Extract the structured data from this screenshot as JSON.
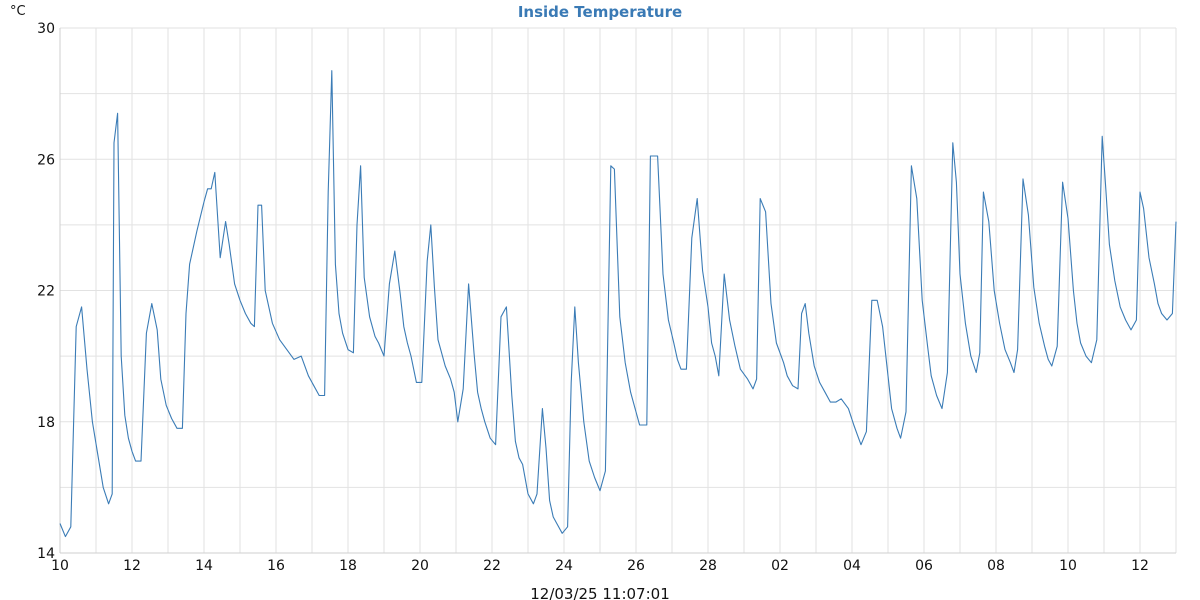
{
  "chart_data": {
    "type": "line",
    "title": "Inside Temperature",
    "y_unit": "°C",
    "ylim": [
      14,
      30
    ],
    "y_ticks": [
      14,
      18,
      22,
      26,
      30
    ],
    "xlim": [
      0,
      31
    ],
    "x_tick_positions": [
      0,
      2,
      4,
      6,
      8,
      10,
      12,
      14,
      16,
      18,
      20,
      22,
      24,
      26,
      28,
      30
    ],
    "x_tick_labels": [
      "10",
      "12",
      "14",
      "16",
      "18",
      "20",
      "22",
      "24",
      "26",
      "28",
      "02",
      "04",
      "06",
      "08",
      "10",
      "12"
    ],
    "grid": true,
    "color": "#3b7cb6",
    "footer": "12/03/25 11:07:01",
    "series": [
      {
        "x": [
          0,
          0.15,
          0.3,
          0.45,
          0.6,
          0.75,
          0.9,
          1.05,
          1.2,
          1.35,
          1.45,
          1.5,
          1.6,
          1.7,
          1.8,
          1.9,
          2.0,
          2.1,
          2.25,
          2.4,
          2.55,
          2.7,
          2.8,
          2.95,
          3.1,
          3.25,
          3.4,
          3.5,
          3.6,
          3.8,
          4.0,
          4.1,
          4.2,
          4.3,
          4.45,
          4.6,
          4.7,
          4.85,
          5.0,
          5.15,
          5.3,
          5.4,
          5.5,
          5.6,
          5.7,
          5.9,
          6.1,
          6.3,
          6.5,
          6.7,
          6.9,
          7.05,
          7.2,
          7.35,
          7.45,
          7.55,
          7.65,
          7.75,
          7.85,
          8.0,
          8.15,
          8.25,
          8.35,
          8.45,
          8.6,
          8.75,
          8.85,
          9.0,
          9.15,
          9.3,
          9.45,
          9.55,
          9.65,
          9.75,
          9.9,
          10.05,
          10.2,
          10.3,
          10.4,
          10.5,
          10.7,
          10.85,
          10.95,
          11.05,
          11.2,
          11.35,
          11.5,
          11.6,
          11.7,
          11.8,
          11.95,
          12.1,
          12.25,
          12.4,
          12.55,
          12.65,
          12.75,
          12.85,
          13.0,
          13.15,
          13.25,
          13.4,
          13.5,
          13.6,
          13.7,
          13.8,
          13.95,
          14.1,
          14.2,
          14.3,
          14.4,
          14.55,
          14.7,
          14.85,
          15.0,
          15.15,
          15.3,
          15.4,
          15.55,
          15.7,
          15.85,
          16.0,
          16.1,
          16.3,
          16.4,
          16.6,
          16.75,
          16.9,
          17.05,
          17.15,
          17.25,
          17.4,
          17.55,
          17.7,
          17.85,
          18.0,
          18.1,
          18.2,
          18.3,
          18.45,
          18.6,
          18.75,
          18.9,
          19.1,
          19.25,
          19.35,
          19.45,
          19.6,
          19.75,
          19.9,
          20.1,
          20.2,
          20.35,
          20.5,
          20.6,
          20.7,
          20.8,
          20.95,
          21.1,
          21.25,
          21.4,
          21.55,
          21.7,
          21.9,
          22.05,
          22.15,
          22.25,
          22.4,
          22.55,
          22.7,
          22.85,
          23.0,
          23.1,
          23.25,
          23.35,
          23.5,
          23.65,
          23.8,
          23.95,
          24.1,
          24.2,
          24.35,
          24.5,
          24.65,
          24.8,
          24.9,
          25.0,
          25.15,
          25.3,
          25.45,
          25.55,
          25.65,
          25.8,
          25.95,
          26.1,
          26.25,
          26.4,
          26.5,
          26.6,
          26.75,
          26.9,
          27.05,
          27.2,
          27.35,
          27.45,
          27.55,
          27.7,
          27.85,
          28.0,
          28.15,
          28.25,
          28.35,
          28.5,
          28.65,
          28.8,
          28.95,
          29.05,
          29.15,
          29.3,
          29.45,
          29.6,
          29.75,
          29.9,
          30.0,
          30.1,
          30.25,
          30.4,
          30.5,
          30.6,
          30.75,
          30.9,
          31.0
        ],
        "y": [
          14.9,
          14.5,
          14.8,
          20.9,
          21.5,
          19.6,
          18.0,
          17.0,
          16.0,
          15.5,
          15.8,
          26.5,
          27.4,
          20.0,
          18.2,
          17.5,
          17.1,
          16.8,
          16.8,
          20.7,
          21.6,
          20.8,
          19.3,
          18.5,
          18.1,
          17.8,
          17.8,
          21.3,
          22.8,
          23.8,
          24.7,
          25.1,
          25.1,
          25.6,
          23.0,
          24.1,
          23.4,
          22.2,
          21.7,
          21.3,
          21.0,
          20.9,
          24.6,
          24.6,
          22.0,
          21.0,
          20.5,
          20.2,
          19.9,
          20.0,
          19.4,
          19.1,
          18.8,
          18.8,
          25.0,
          28.7,
          22.8,
          21.3,
          20.7,
          20.2,
          20.1,
          24.0,
          25.8,
          22.4,
          21.2,
          20.6,
          20.4,
          20.0,
          22.2,
          23.2,
          21.9,
          20.9,
          20.4,
          20.0,
          19.2,
          19.2,
          22.9,
          24.0,
          22.1,
          20.5,
          19.7,
          19.3,
          18.9,
          18.0,
          19.0,
          22.2,
          20.1,
          18.9,
          18.4,
          18.0,
          17.5,
          17.3,
          21.2,
          21.5,
          18.8,
          17.4,
          16.9,
          16.7,
          15.8,
          15.5,
          15.8,
          18.4,
          17.2,
          15.6,
          15.1,
          14.9,
          14.6,
          14.8,
          19.2,
          21.5,
          19.8,
          18.0,
          16.8,
          16.3,
          15.9,
          16.5,
          25.8,
          25.7,
          21.2,
          19.8,
          18.9,
          18.3,
          17.9,
          17.9,
          26.1,
          26.1,
          22.5,
          21.1,
          20.4,
          19.9,
          19.6,
          19.6,
          23.6,
          24.8,
          22.6,
          21.5,
          20.4,
          20.0,
          19.4,
          22.5,
          21.1,
          20.3,
          19.6,
          19.3,
          19.0,
          19.3,
          24.8,
          24.4,
          21.6,
          20.4,
          19.8,
          19.4,
          19.1,
          19.0,
          21.3,
          21.6,
          20.7,
          19.7,
          19.2,
          18.9,
          18.6,
          18.6,
          18.7,
          18.4,
          17.9,
          17.6,
          17.3,
          17.7,
          21.7,
          21.7,
          20.9,
          19.4,
          18.4,
          17.8,
          17.5,
          18.3,
          25.8,
          24.8,
          21.7,
          20.3,
          19.4,
          18.8,
          18.4,
          19.5,
          26.5,
          25.3,
          22.5,
          21.0,
          20.0,
          19.5,
          20.1,
          25.0,
          24.1,
          22.0,
          21.0,
          20.2,
          19.8,
          19.5,
          20.2,
          25.4,
          24.3,
          22.1,
          21.0,
          20.3,
          19.9,
          19.7,
          20.3,
          25.3,
          24.2,
          22.0,
          21.0,
          20.4,
          20.0,
          19.8,
          20.5,
          26.7,
          25.1,
          23.4,
          22.3,
          21.5,
          21.1,
          20.8,
          21.1,
          25.0,
          24.5,
          23.0,
          22.2,
          21.6,
          21.3,
          21.1,
          21.3,
          24.1
        ]
      }
    ]
  }
}
